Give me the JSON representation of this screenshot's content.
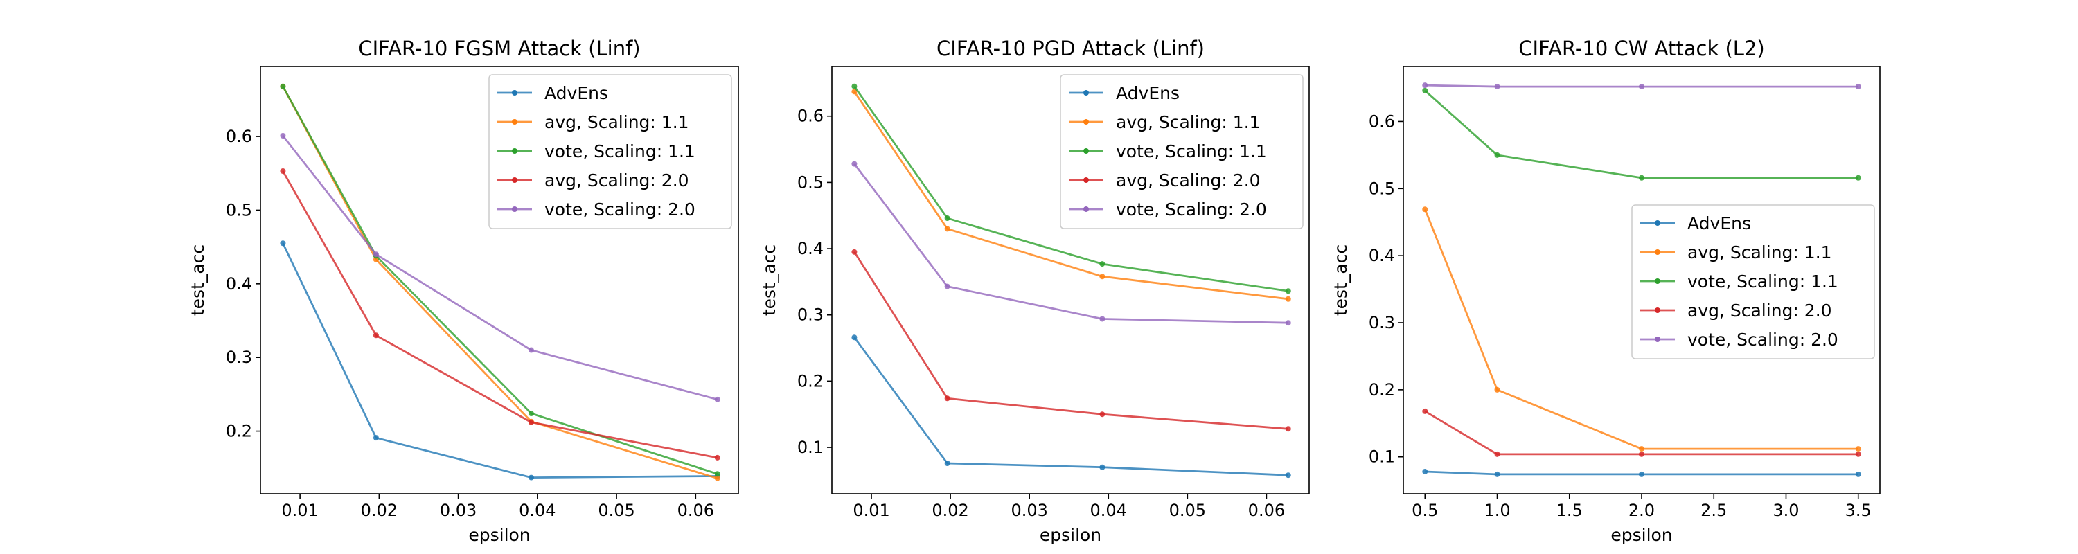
{
  "colors": {
    "AdvEns": "#1f77b4",
    "avg, Scaling: 1.1": "#ff7f0e",
    "vote, Scaling: 1.1": "#2ca02c",
    "avg, Scaling: 2.0": "#d62728",
    "vote, Scaling: 2.0": "#9467bd"
  },
  "chart_data": [
    {
      "type": "line",
      "title": "CIFAR-10 FGSM Attack (Linf)",
      "xlabel": "epsilon",
      "ylabel": "test_acc",
      "x": [
        0.00784,
        0.01961,
        0.03922,
        0.06275
      ],
      "xlim": [
        0.005,
        0.0654
      ],
      "ylim": [
        0.115,
        0.695
      ],
      "xticks": [
        0.01,
        0.02,
        0.03,
        0.04,
        0.05,
        0.06
      ],
      "xtick_labels": [
        "0.01",
        "0.02",
        "0.03",
        "0.04",
        "0.05",
        "0.06"
      ],
      "yticks": [
        0.2,
        0.3,
        0.4,
        0.5,
        0.6
      ],
      "ytick_labels": [
        "0.2",
        "0.3",
        "0.4",
        "0.5",
        "0.6"
      ],
      "legend_position": "top-right",
      "grid": false,
      "series": [
        {
          "name": "AdvEns",
          "values": [
            0.455,
            0.191,
            0.137,
            0.139
          ]
        },
        {
          "name": "avg, Scaling: 1.1",
          "values": [
            0.668,
            0.433,
            0.213,
            0.136
          ]
        },
        {
          "name": "vote, Scaling: 1.1",
          "values": [
            0.668,
            0.438,
            0.224,
            0.142
          ]
        },
        {
          "name": "avg, Scaling: 2.0",
          "values": [
            0.553,
            0.33,
            0.212,
            0.164
          ]
        },
        {
          "name": "vote, Scaling: 2.0",
          "values": [
            0.601,
            0.44,
            0.31,
            0.243
          ]
        }
      ]
    },
    {
      "type": "line",
      "title": "CIFAR-10 PGD Attack (Linf)",
      "xlabel": "epsilon",
      "ylabel": "test_acc",
      "x": [
        0.00784,
        0.01961,
        0.03922,
        0.06275
      ],
      "xlim": [
        0.005,
        0.0654
      ],
      "ylim": [
        0.03,
        0.675
      ],
      "xticks": [
        0.01,
        0.02,
        0.03,
        0.04,
        0.05,
        0.06
      ],
      "xtick_labels": [
        "0.01",
        "0.02",
        "0.03",
        "0.04",
        "0.05",
        "0.06"
      ],
      "yticks": [
        0.1,
        0.2,
        0.3,
        0.4,
        0.5,
        0.6
      ],
      "ytick_labels": [
        "0.1",
        "0.2",
        "0.3",
        "0.4",
        "0.5",
        "0.6"
      ],
      "legend_position": "top-right",
      "grid": false,
      "series": [
        {
          "name": "AdvEns",
          "values": [
            0.266,
            0.076,
            0.07,
            0.058
          ]
        },
        {
          "name": "avg, Scaling: 1.1",
          "values": [
            0.637,
            0.43,
            0.358,
            0.324
          ]
        },
        {
          "name": "vote, Scaling: 1.1",
          "values": [
            0.645,
            0.446,
            0.377,
            0.336
          ]
        },
        {
          "name": "avg, Scaling: 2.0",
          "values": [
            0.395,
            0.174,
            0.15,
            0.128
          ]
        },
        {
          "name": "vote, Scaling: 2.0",
          "values": [
            0.528,
            0.343,
            0.294,
            0.288
          ]
        }
      ]
    },
    {
      "type": "line",
      "title": "CIFAR-10 CW Attack (L2)",
      "xlabel": "epsilon",
      "ylabel": "test_acc",
      "x": [
        0.5,
        1.0,
        2.0,
        3.5
      ],
      "xlim": [
        0.35,
        3.65
      ],
      "ylim": [
        0.045,
        0.682
      ],
      "xticks": [
        0.5,
        1.0,
        1.5,
        2.0,
        2.5,
        3.0,
        3.5
      ],
      "xtick_labels": [
        "0.5",
        "1.0",
        "1.5",
        "2.0",
        "2.5",
        "3.0",
        "3.5"
      ],
      "yticks": [
        0.1,
        0.2,
        0.3,
        0.4,
        0.5,
        0.6
      ],
      "ytick_labels": [
        "0.1",
        "0.2",
        "0.3",
        "0.4",
        "0.5",
        "0.6"
      ],
      "legend_position": "center-right",
      "grid": false,
      "series": [
        {
          "name": "AdvEns",
          "values": [
            0.078,
            0.074,
            0.074,
            0.074
          ]
        },
        {
          "name": "avg, Scaling: 1.1",
          "values": [
            0.469,
            0.2,
            0.112,
            0.112
          ]
        },
        {
          "name": "vote, Scaling: 1.1",
          "values": [
            0.646,
            0.55,
            0.516,
            0.516
          ]
        },
        {
          "name": "avg, Scaling: 2.0",
          "values": [
            0.168,
            0.104,
            0.104,
            0.104
          ]
        },
        {
          "name": "vote, Scaling: 2.0",
          "values": [
            0.654,
            0.652,
            0.652,
            0.652
          ]
        }
      ]
    }
  ]
}
